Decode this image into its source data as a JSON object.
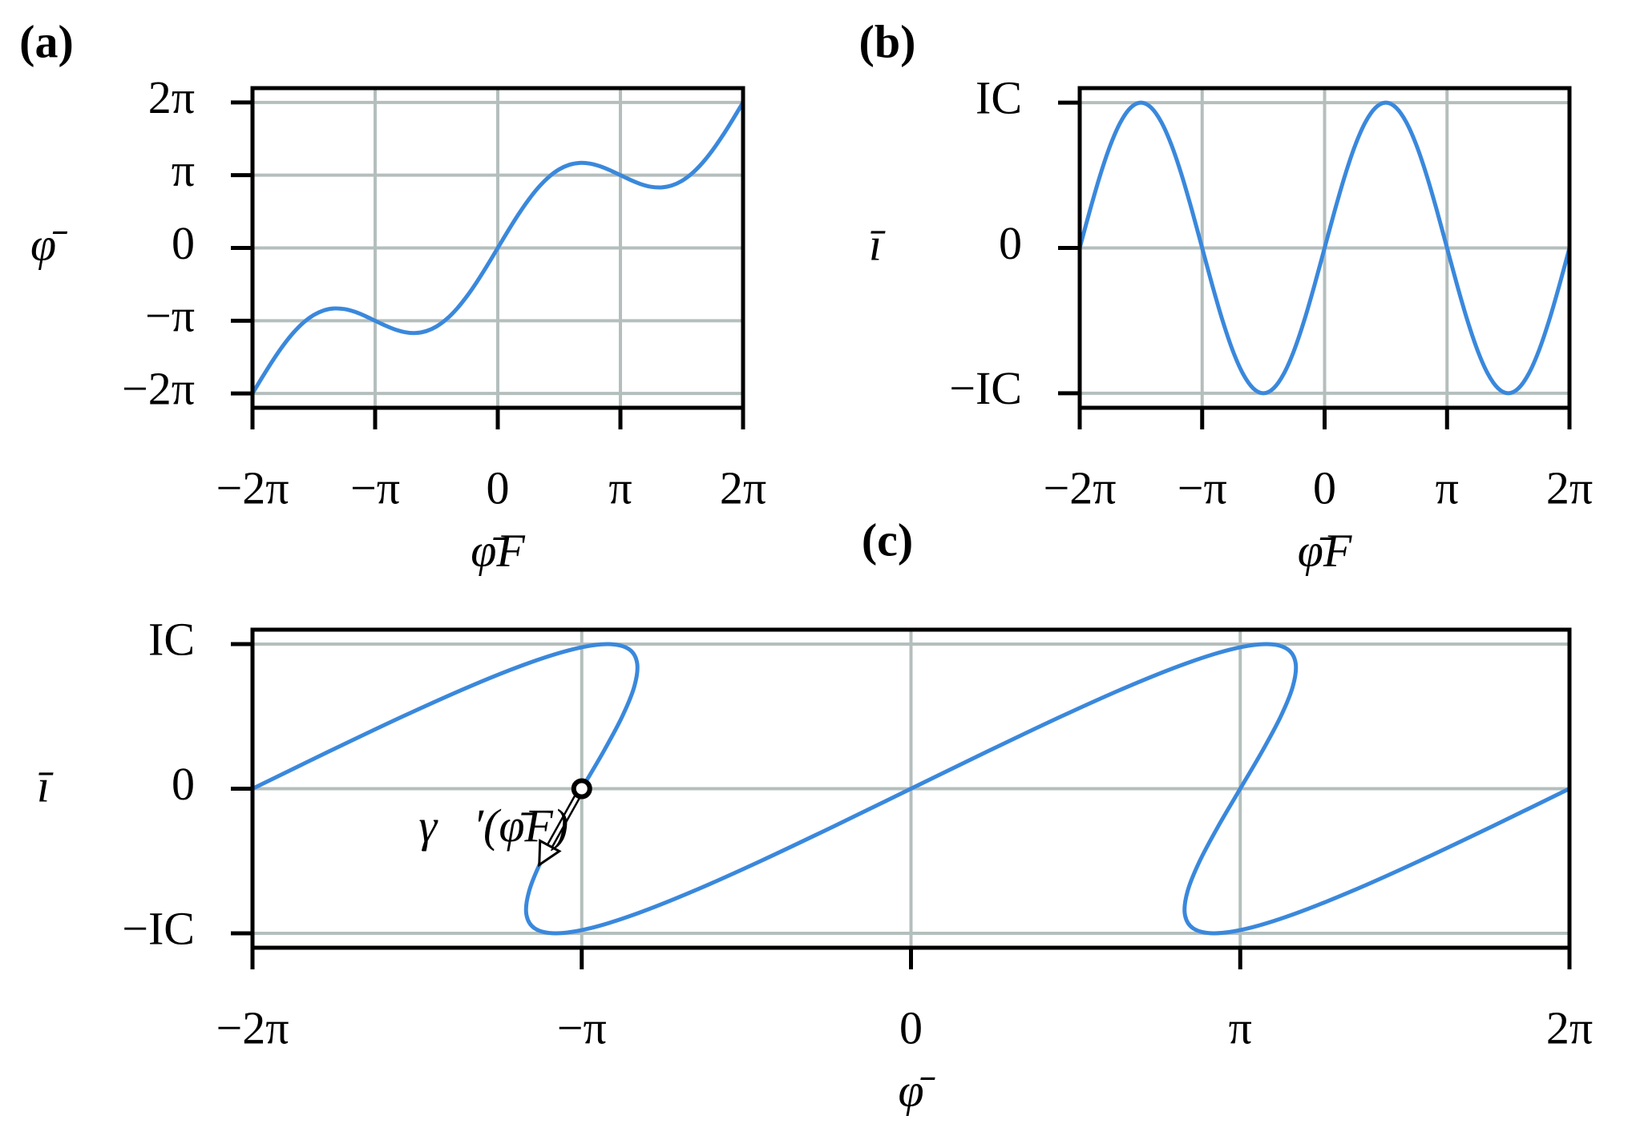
{
  "chart_data": [
    {
      "type": "line",
      "label": "(a)",
      "xlabel": "φ̄F",
      "ylabel": "φ̄",
      "grid": true,
      "xlim": [
        -6.2832,
        6.2832
      ],
      "ylim": [
        -6.9,
        6.9
      ],
      "xticks": [
        {
          "value": -6.2832,
          "label": "−2π"
        },
        {
          "value": -3.1416,
          "label": "−π"
        },
        0,
        {
          "value": 3.1416,
          "label": "π"
        },
        {
          "value": 6.2832,
          "label": "2π"
        }
      ],
      "yticks": [
        {
          "value": -6.2832,
          "label": "−2π"
        },
        {
          "value": -3.1416,
          "label": "−π"
        },
        0,
        {
          "value": 3.1416,
          "label": "π"
        },
        {
          "value": 6.2832,
          "label": "2π"
        }
      ],
      "x": [
        -6.2832,
        -6.0214,
        -5.7596,
        -5.4978,
        -5.236,
        -4.9742,
        -4.7124,
        -4.4506,
        -4.1888,
        -3.927,
        -3.6652,
        -3.4034,
        -3.1416,
        -2.8798,
        -2.618,
        -2.3562,
        -2.0944,
        -1.8326,
        -1.5708,
        -1.309,
        -1.0472,
        -0.7854,
        -0.5236,
        -0.2618,
        0,
        0.2618,
        0.5236,
        0.7854,
        1.0472,
        1.309,
        1.5708,
        1.8326,
        2.0944,
        2.3562,
        2.618,
        2.8798,
        3.1416,
        3.4034,
        3.6652,
        3.927,
        4.1888,
        4.4506,
        4.7124,
        4.9742,
        5.236,
        5.4978,
        5.7596,
        6.0214,
        6.2832
      ],
      "series": [
        {
          "color": "#3a88dc",
          "values": [
            -6.2832,
            -5.5504,
            -4.8496,
            -4.2109,
            -3.6599,
            -3.2163,
            -2.8924,
            -2.6927,
            -2.6127,
            -2.6401,
            -2.7552,
            -2.9324,
            -3.1416,
            -3.3508,
            -3.528,
            -3.6431,
            -3.6705,
            -3.5905,
            -3.3908,
            -3.0669,
            -2.6233,
            -2.0723,
            -1.4336,
            -0.7328,
            0,
            0.7328,
            1.4336,
            2.0723,
            2.6233,
            3.0669,
            3.3908,
            3.5905,
            3.6705,
            3.6431,
            3.528,
            3.3508,
            3.1416,
            2.9324,
            2.7552,
            2.6401,
            2.6127,
            2.6927,
            2.8924,
            3.2163,
            3.6599,
            4.2109,
            4.8496,
            5.5504,
            6.2832
          ]
        }
      ]
    },
    {
      "type": "line",
      "label": "(b)",
      "xlabel": "φ̄F",
      "ylabel": "ī",
      "grid": true,
      "xlim": [
        -6.2832,
        6.2832
      ],
      "ylim": [
        -1.1,
        1.1
      ],
      "xticks": [
        {
          "value": -6.2832,
          "label": "−2π"
        },
        {
          "value": -3.1416,
          "label": "−π"
        },
        0,
        {
          "value": 3.1416,
          "label": "π"
        },
        {
          "value": 6.2832,
          "label": "2π"
        }
      ],
      "yticks": [
        {
          "value": -1,
          "label": "−IC"
        },
        0,
        {
          "value": 1,
          "label": "IC"
        }
      ],
      "x": [
        -6.2832,
        -6.0214,
        -5.7596,
        -5.4978,
        -5.236,
        -4.9742,
        -4.7124,
        -4.4506,
        -4.1888,
        -3.927,
        -3.6652,
        -3.4034,
        -3.1416,
        -2.8798,
        -2.618,
        -2.3562,
        -2.0944,
        -1.8326,
        -1.5708,
        -1.309,
        -1.0472,
        -0.7854,
        -0.5236,
        -0.2618,
        0,
        0.2618,
        0.5236,
        0.7854,
        1.0472,
        1.309,
        1.5708,
        1.8326,
        2.0944,
        2.3562,
        2.618,
        2.8798,
        3.1416,
        3.4034,
        3.6652,
        3.927,
        4.1888,
        4.4506,
        4.7124,
        4.9742,
        5.236,
        5.4978,
        5.7596,
        6.0214,
        6.2832
      ],
      "series": [
        {
          "color": "#3a88dc",
          "values": [
            0,
            0.2588,
            0.5,
            0.7071,
            0.866,
            0.9659,
            1,
            0.9659,
            0.866,
            0.7071,
            0.5,
            0.2588,
            0,
            -0.2588,
            -0.5,
            -0.7071,
            -0.866,
            -0.9659,
            -1,
            -0.9659,
            -0.866,
            -0.7071,
            -0.5,
            -0.2588,
            0,
            0.2588,
            0.5,
            0.7071,
            0.866,
            0.9659,
            1,
            0.9659,
            0.866,
            0.7071,
            0.5,
            0.2588,
            0,
            -0.2588,
            -0.5,
            -0.7071,
            -0.866,
            -0.9659,
            -1,
            -0.9659,
            -0.866,
            -0.7071,
            -0.5,
            -0.2588,
            0
          ]
        }
      ]
    },
    {
      "type": "line",
      "label": "(c)",
      "xlabel": "φ̄",
      "ylabel": "ī",
      "grid": true,
      "xlim": [
        -6.2832,
        6.2832
      ],
      "ylim": [
        -1.1,
        1.1
      ],
      "xticks": [
        {
          "value": -6.2832,
          "label": "−2π"
        },
        {
          "value": -3.1416,
          "label": "−π"
        },
        0,
        {
          "value": 3.1416,
          "label": "π"
        },
        {
          "value": 6.2832,
          "label": "2π"
        }
      ],
      "yticks": [
        {
          "value": -1,
          "label": "−IC"
        },
        0,
        {
          "value": 1,
          "label": "IC"
        }
      ],
      "x": [
        -6.2832,
        -5.5504,
        -4.8496,
        -4.2109,
        -3.6599,
        -3.2163,
        -2.8924,
        -2.6927,
        -2.6127,
        -2.6401,
        -2.7552,
        -2.9324,
        -3.1416,
        -3.3508,
        -3.528,
        -3.6431,
        -3.6705,
        -3.5905,
        -3.3908,
        -3.0669,
        -2.6233,
        -2.0723,
        -1.4336,
        -0.7328,
        0,
        0.7328,
        1.4336,
        2.0723,
        2.6233,
        3.0669,
        3.3908,
        3.5905,
        3.6705,
        3.6431,
        3.528,
        3.3508,
        3.1416,
        2.9324,
        2.7552,
        2.6401,
        2.6127,
        2.6927,
        2.8924,
        3.2163,
        3.6599,
        4.2109,
        4.8496,
        5.5504,
        6.2832
      ],
      "series": [
        {
          "color": "#3a88dc",
          "values": [
            0,
            0.2588,
            0.5,
            0.7071,
            0.866,
            0.9659,
            1,
            0.9659,
            0.866,
            0.7071,
            0.5,
            0.2588,
            0,
            -0.2588,
            -0.5,
            -0.7071,
            -0.866,
            -0.9659,
            -1,
            -0.9659,
            -0.866,
            -0.7071,
            -0.5,
            -0.2588,
            0,
            0.2588,
            0.5,
            0.7071,
            0.866,
            0.9659,
            1,
            0.9659,
            0.866,
            0.7071,
            0.5,
            0.2588,
            0,
            -0.2588,
            -0.5,
            -0.7071,
            -0.866,
            -0.9659,
            -1,
            -0.9659,
            -0.866,
            -0.7071,
            -0.5,
            -0.2588,
            0
          ]
        }
      ],
      "annotation": {
        "text": "γ⃗′(φ̄F)",
        "x": -3.1416,
        "y": 0
      }
    }
  ]
}
